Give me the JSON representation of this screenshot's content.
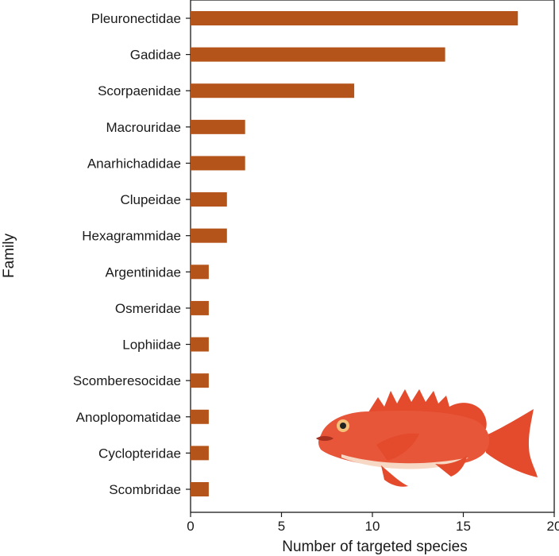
{
  "chart_data": {
    "type": "bar",
    "orientation": "horizontal",
    "categories": [
      "Pleuronectidae",
      "Gadidae",
      "Scorpaenidae",
      "Macrouridae",
      "Anarhichadidae",
      "Clupeidae",
      "Hexagrammidae",
      "Argentinidae",
      "Osmeridae",
      "Lophiidae",
      "Scomberesocidae",
      "Anoplopomatidae",
      "Cyclopteridae",
      "Scombridae"
    ],
    "values": [
      18,
      14,
      9,
      3,
      3,
      2,
      2,
      1,
      1,
      1,
      1,
      1,
      1,
      1
    ],
    "xlabel": "Number of targeted species",
    "ylabel": "Family",
    "xlim": [
      0,
      20
    ],
    "xticks": [
      0,
      5,
      10,
      15,
      20
    ],
    "grid": false,
    "bar_color": "#b5541a"
  },
  "illustration": {
    "icon": "rockfish-illustration",
    "colors": {
      "body": "#e8563a",
      "belly": "#f6d8c4",
      "fin": "#e44a2c",
      "dark": "#a8301e"
    }
  }
}
